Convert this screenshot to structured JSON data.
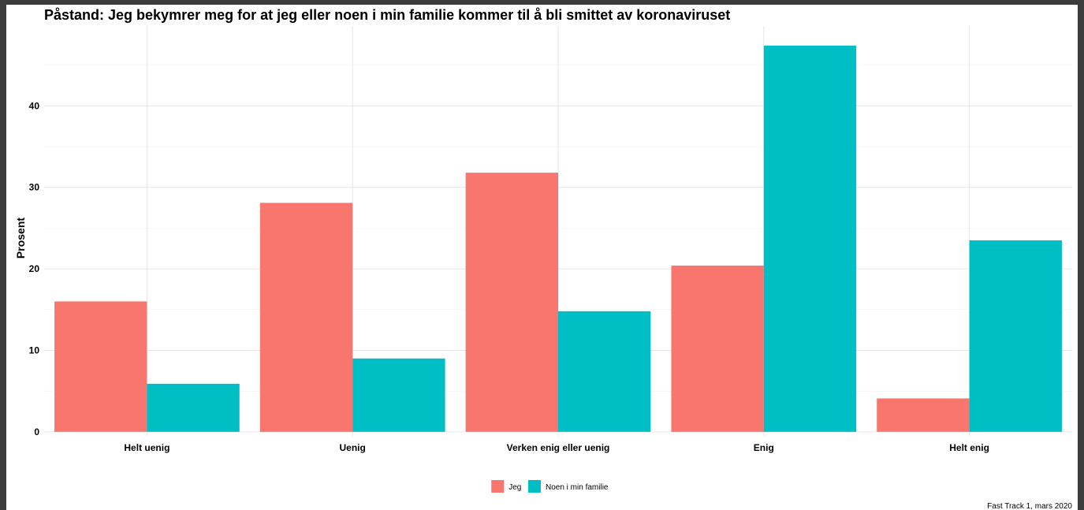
{
  "chart_data": {
    "type": "bar",
    "title": "Påstand: Jeg bekymrer meg for at jeg eller noen i min familie kommer til å bli smittet av koronaviruset",
    "xlabel": "",
    "ylabel": "Prosent",
    "categories": [
      "Helt uenig",
      "Uenig",
      "Verken enig eller uenig",
      "Enig",
      "Helt enig"
    ],
    "series": [
      {
        "name": "Jeg",
        "color": "#F8766D",
        "values": [
          16,
          28.1,
          31.8,
          20.4,
          4.1
        ]
      },
      {
        "name": "Noen i min familie",
        "color": "#00BFC4",
        "values": [
          5.9,
          9.0,
          14.8,
          47.4,
          23.5
        ]
      }
    ],
    "ylim": [
      -0.5,
      49.8
    ],
    "yticks": [
      0,
      10,
      20,
      30,
      40
    ],
    "grid": true,
    "legend_position": "bottom",
    "caption": "Fast Track 1, mars 2020"
  }
}
